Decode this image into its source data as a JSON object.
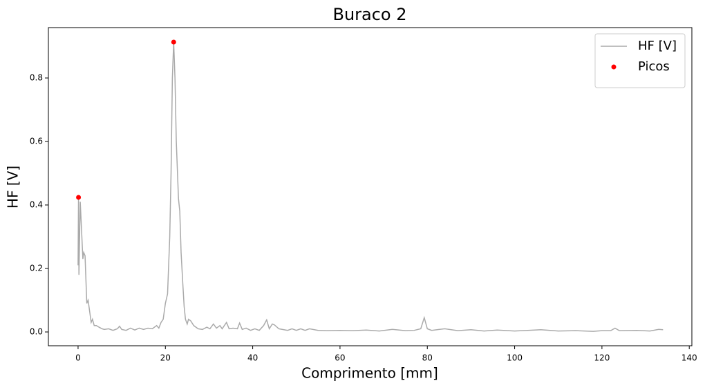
{
  "chart_data": {
    "type": "line",
    "title": "Buraco 2",
    "x_label": "Comprimento [mm]",
    "y_label": "HF [V]",
    "xlim": [
      -6.8,
      140.6
    ],
    "ylim": [
      -0.0435,
      0.9587
    ],
    "xticks": [
      0,
      20,
      40,
      60,
      80,
      100,
      120,
      140
    ],
    "yticks": [
      {
        "value": 0,
        "label": "0.0"
      },
      0.2,
      0.4,
      0.6,
      0.8
    ],
    "grid": false,
    "legend": "upper right",
    "series": [
      {
        "name": "HF [V]",
        "type": "line",
        "color": "#aaaaaa",
        "x": [
          0,
          0.1,
          0.2,
          0.5,
          0.8,
          1.1,
          1.3,
          1.6,
          2,
          2.3,
          2.6,
          3,
          3.3,
          3.7,
          4.2,
          4.8,
          5.5,
          6,
          7,
          8,
          9,
          9.5,
          10,
          11,
          12,
          13,
          14,
          15,
          16,
          17,
          18,
          18.5,
          19,
          19.5,
          20,
          20.5,
          21,
          21.3,
          21.6,
          21.9,
          22.2,
          22.5,
          23,
          23.3,
          23.6,
          24,
          24.3,
          24.6,
          25,
          25.3,
          25.8,
          26.5,
          27.5,
          28.5,
          29.5,
          30.2,
          31,
          31.7,
          32.5,
          33,
          34,
          34.6,
          35.5,
          36.5,
          37,
          37.6,
          38.5,
          39.5,
          40.5,
          41.5,
          42.5,
          43.2,
          43.8,
          44.5,
          45,
          46,
          48,
          49,
          50,
          51,
          52,
          53,
          55,
          57,
          60,
          63,
          66,
          69,
          72,
          75,
          77,
          78.5,
          79.3,
          80,
          81,
          84,
          87,
          90,
          93,
          96,
          100,
          103,
          106,
          110,
          114,
          118,
          120,
          122,
          123,
          124,
          128,
          131,
          133,
          134
        ],
        "values": [
          0.21,
          0.42,
          0.18,
          0.41,
          0.32,
          0.23,
          0.25,
          0.24,
          0.09,
          0.1,
          0.07,
          0.03,
          0.04,
          0.02,
          0.02,
          0.015,
          0.01,
          0.008,
          0.01,
          0.005,
          0.01,
          0.018,
          0.008,
          0.005,
          0.012,
          0.006,
          0.012,
          0.008,
          0.012,
          0.01,
          0.02,
          0.012,
          0.03,
          0.04,
          0.09,
          0.12,
          0.3,
          0.5,
          0.8,
          0.913,
          0.8,
          0.6,
          0.42,
          0.38,
          0.25,
          0.15,
          0.08,
          0.04,
          0.025,
          0.04,
          0.035,
          0.02,
          0.01,
          0.008,
          0.015,
          0.01,
          0.025,
          0.012,
          0.02,
          0.01,
          0.03,
          0.01,
          0.012,
          0.01,
          0.028,
          0.008,
          0.012,
          0.005,
          0.01,
          0.005,
          0.02,
          0.038,
          0.01,
          0.025,
          0.022,
          0.01,
          0.005,
          0.01,
          0.005,
          0.01,
          0.005,
          0.01,
          0.005,
          0.004,
          0.005,
          0.004,
          0.006,
          0.003,
          0.008,
          0.004,
          0.005,
          0.01,
          0.045,
          0.01,
          0.005,
          0.01,
          0.004,
          0.007,
          0.003,
          0.006,
          0.003,
          0.005,
          0.007,
          0.003,
          0.004,
          0.002,
          0.004,
          0.004,
          0.012,
          0.004,
          0.005,
          0.003,
          0.008,
          0.007
        ]
      },
      {
        "name": "Picos",
        "type": "scatter",
        "color": "#ff0000",
        "x": [
          0.1,
          21.9
        ],
        "values": [
          0.424,
          0.913
        ]
      }
    ]
  }
}
